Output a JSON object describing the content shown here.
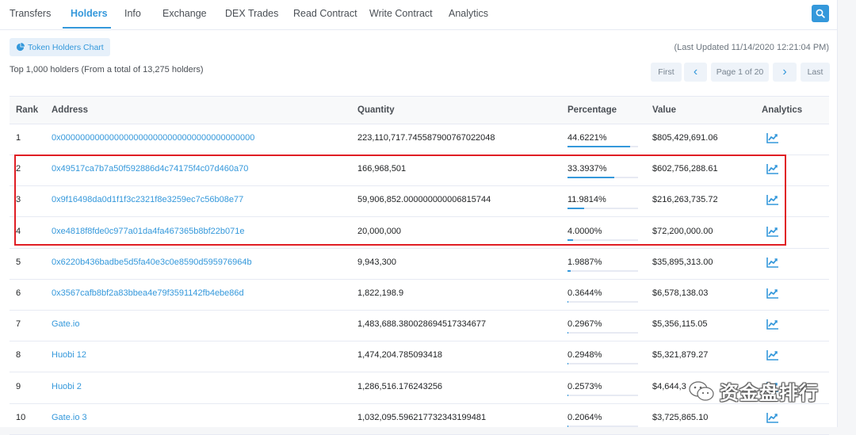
{
  "tabs": [
    {
      "label": "Transfers",
      "active": false
    },
    {
      "label": "Holders",
      "active": true
    },
    {
      "label": "Info",
      "active": false
    },
    {
      "label": "Exchange",
      "active": false
    },
    {
      "label": "DEX Trades",
      "active": false
    },
    {
      "label": "Read Contract",
      "active": false
    },
    {
      "label": "Write Contract",
      "active": false
    },
    {
      "label": "Analytics",
      "active": false
    }
  ],
  "toolbar": {
    "chart_button": "Token Holders Chart",
    "last_updated": "(Last Updated 11/14/2020 12:21:04 PM)",
    "summary": "Top 1,000 holders (From a total of 13,275 holders)"
  },
  "pagination": {
    "first": "First",
    "prev": "‹",
    "page": "Page 1 of 20",
    "next": "›",
    "last": "Last"
  },
  "table": {
    "headers": {
      "rank": "Rank",
      "address": "Address",
      "quantity": "Quantity",
      "percentage": "Percentage",
      "value": "Value",
      "analytics": "Analytics"
    },
    "rows": [
      {
        "rank": "1",
        "address": "0x0000000000000000000000000000000000000000",
        "quantity": "223,110,717.745587900767022048",
        "percentage": "44.6221%",
        "pct": 44.6221,
        "value": "$805,429,691.06"
      },
      {
        "rank": "2",
        "address": "0x49517ca7b7a50f592886d4c74175f4c07d460a70",
        "quantity": "166,968,501",
        "percentage": "33.3937%",
        "pct": 33.3937,
        "value": "$602,756,288.61"
      },
      {
        "rank": "3",
        "address": "0x9f16498da0d1f1f3c2321f8e3259ec7c56b08e77",
        "quantity": "59,906,852.000000000006815744",
        "percentage": "11.9814%",
        "pct": 11.9814,
        "value": "$216,263,735.72"
      },
      {
        "rank": "4",
        "address": "0xe4818f8fde0c977a01da4fa467365b8bf22b071e",
        "quantity": "20,000,000",
        "percentage": "4.0000%",
        "pct": 4.0,
        "value": "$72,200,000.00"
      },
      {
        "rank": "5",
        "address": "0x6220b436badbe5d5fa40e3c0e8590d595976964b",
        "quantity": "9,943,300",
        "percentage": "1.9887%",
        "pct": 1.9887,
        "value": "$35,895,313.00"
      },
      {
        "rank": "6",
        "address": "0x3567cafb8bf2a83bbea4e79f3591142fb4ebe86d",
        "quantity": "1,822,198.9",
        "percentage": "0.3644%",
        "pct": 0.3644,
        "value": "$6,578,138.03"
      },
      {
        "rank": "7",
        "address": "Gate.io",
        "quantity": "1,483,688.380028694517334677",
        "percentage": "0.2967%",
        "pct": 0.2967,
        "value": "$5,356,115.05"
      },
      {
        "rank": "8",
        "address": "Huobi 12",
        "quantity": "1,474,204.785093418",
        "percentage": "0.2948%",
        "pct": 0.2948,
        "value": "$5,321,879.27"
      },
      {
        "rank": "9",
        "address": "Huobi 2",
        "quantity": "1,286,516.176243256",
        "percentage": "0.2573%",
        "pct": 0.2573,
        "value": "$4,644,3"
      },
      {
        "rank": "10",
        "address": "Gate.io 3",
        "quantity": "1,032,095.596217732343199481",
        "percentage": "0.2064%",
        "pct": 0.2064,
        "value": "$3,725,865.10"
      }
    ]
  },
  "watermark": {
    "text": "资金盘排行",
    "icon": "wechat-icon"
  },
  "colors": {
    "accent": "#3498db",
    "highlight": "#e01e24"
  }
}
